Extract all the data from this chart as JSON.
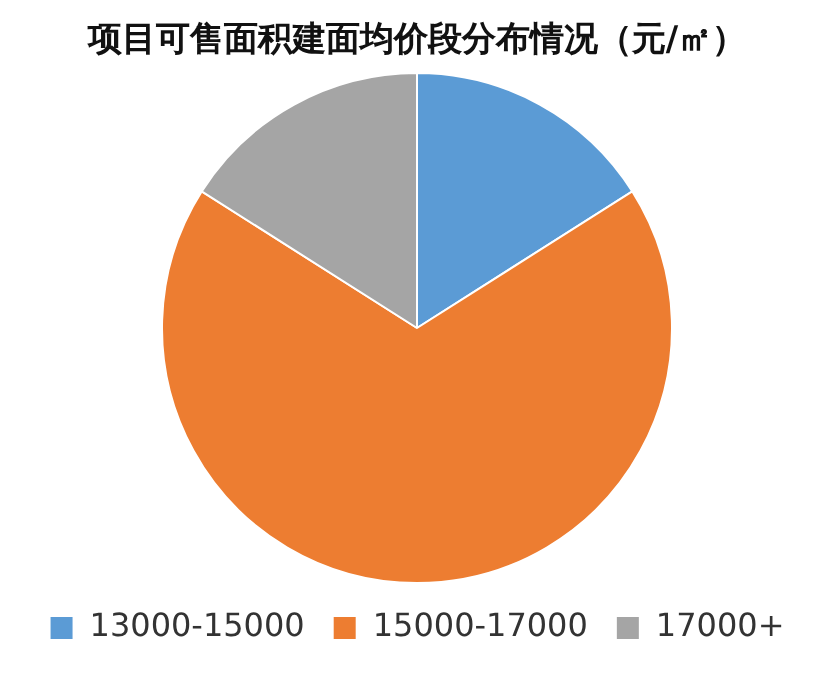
{
  "chart_data": {
    "type": "pie",
    "title": "项目可售面积建面均价段分布情况（元/㎡）",
    "categories": [
      "13000-15000",
      "15000-17000",
      "17000+"
    ],
    "values": [
      16,
      68,
      16
    ],
    "colors": [
      "#5b9bd5",
      "#ed7d31",
      "#a5a5a5"
    ],
    "legend": "bottom"
  }
}
